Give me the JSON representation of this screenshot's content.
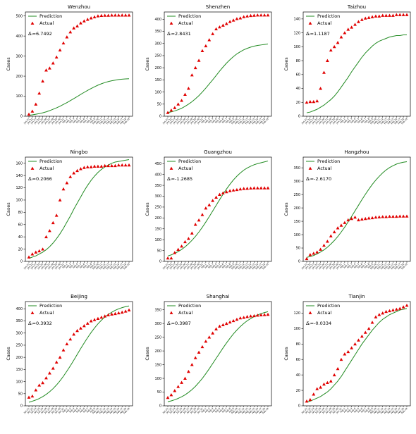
{
  "figure": {
    "legend": {
      "prediction": "Prediction",
      "actual": "Actual"
    },
    "ylabel": "Cases",
    "x_ticks": [
      "Jan.21",
      "Jan.22",
      "Jan.23",
      "Jan.24",
      "Jan.25",
      "Jan.26",
      "Jan.27",
      "Jan.28",
      "Jan.29",
      "Jan.30",
      "Jan.31",
      "Feb.1",
      "Feb.2",
      "Feb.3",
      "Feb.4",
      "Feb.5",
      "Feb.6",
      "Feb.7",
      "Feb.8",
      "Feb.9",
      "Feb.10",
      "Feb.11",
      "Feb.12",
      "Feb.13",
      "Feb.14",
      "Feb.15",
      "Feb.16",
      "Feb.17",
      "Feb.18",
      "Feb.19"
    ],
    "colors": {
      "prediction": "#228b22",
      "actual": "#e00000"
    }
  },
  "chart_data": [
    {
      "type": "line",
      "title": "Wenzhou",
      "annotation": "Δ̄ᵢ=6.7492",
      "ylabel": "Cases",
      "ylim": [
        0,
        520
      ],
      "yticks": [
        0,
        100,
        200,
        300,
        400,
        500
      ],
      "series": [
        {
          "name": "Prediction",
          "values": [
            5,
            7,
            10,
            13,
            17,
            22,
            28,
            35,
            42,
            50,
            59,
            68,
            78,
            88,
            98,
            109,
            119,
            129,
            138,
            147,
            155,
            162,
            168,
            173,
            177,
            180,
            183,
            185,
            186,
            187
          ]
        },
        {
          "name": "Actual",
          "values": [
            10,
            25,
            60,
            115,
            175,
            230,
            240,
            265,
            295,
            330,
            365,
            395,
            420,
            440,
            450,
            465,
            475,
            483,
            490,
            495,
            500,
            502,
            503,
            503,
            504,
            504,
            504,
            504,
            504,
            504
          ]
        }
      ]
    },
    {
      "type": "line",
      "title": "Shenzhen",
      "annotation": "Δ̄ᵢ=2.8431",
      "ylabel": "Cases",
      "ylim": [
        0,
        430
      ],
      "yticks": [
        0,
        50,
        100,
        150,
        200,
        250,
        300,
        350,
        400
      ],
      "series": [
        {
          "name": "Prediction",
          "values": [
            15,
            18,
            22,
            27,
            33,
            41,
            50,
            60,
            72,
            85,
            100,
            116,
            133,
            150,
            168,
            186,
            203,
            219,
            233,
            246,
            257,
            266,
            274,
            280,
            285,
            289,
            292,
            294,
            296,
            298
          ]
        },
        {
          "name": "Actual",
          "values": [
            15,
            25,
            35,
            50,
            65,
            90,
            115,
            170,
            200,
            230,
            270,
            290,
            315,
            340,
            360,
            368,
            375,
            382,
            390,
            396,
            402,
            405,
            410,
            413,
            415,
            416,
            417,
            417,
            417,
            417
          ]
        }
      ]
    },
    {
      "type": "line",
      "title": "Taizhou",
      "annotation": "Δ̄ᵢ=1.1187",
      "ylabel": "Cases",
      "ylim": [
        0,
        150
      ],
      "yticks": [
        0,
        20,
        40,
        60,
        80,
        100,
        120,
        140
      ],
      "series": [
        {
          "name": "Prediction",
          "values": [
            5,
            6,
            8,
            10,
            13,
            16,
            20,
            24,
            29,
            35,
            42,
            49,
            56,
            64,
            71,
            78,
            85,
            91,
            96,
            101,
            105,
            108,
            110,
            112,
            114,
            115,
            116,
            116,
            117,
            117
          ]
        },
        {
          "name": "Actual",
          "values": [
            20,
            21,
            21,
            22,
            40,
            63,
            80,
            95,
            100,
            106,
            114,
            120,
            125,
            128,
            132,
            136,
            139,
            141,
            142,
            143,
            144,
            144,
            145,
            145,
            145,
            145,
            146,
            146,
            146,
            146
          ]
        }
      ]
    },
    {
      "type": "line",
      "title": "Ningbo",
      "annotation": "Δ̄ᵢ=0.2066",
      "ylabel": "Cases",
      "ylim": [
        0,
        170
      ],
      "yticks": [
        0,
        20,
        40,
        60,
        80,
        100,
        120,
        140,
        160
      ],
      "series": [
        {
          "name": "Prediction",
          "values": [
            5,
            7,
            9,
            12,
            15,
            19,
            24,
            30,
            37,
            45,
            54,
            64,
            74,
            85,
            95,
            105,
            115,
            124,
            132,
            139,
            145,
            150,
            154,
            157,
            160,
            162,
            163,
            164,
            165,
            166
          ]
        },
        {
          "name": "Actual",
          "values": [
            7,
            12,
            15,
            17,
            20,
            40,
            50,
            63,
            75,
            100,
            118,
            128,
            138,
            144,
            148,
            151,
            153,
            154,
            154,
            155,
            155,
            155,
            156,
            156,
            156,
            156,
            157,
            157,
            157,
            157
          ]
        }
      ]
    },
    {
      "type": "line",
      "title": "Guangzhou",
      "annotation": "Δ̄ᵢ=-1.2685",
      "ylabel": "Cases",
      "ylim": [
        0,
        480
      ],
      "yticks": [
        0,
        50,
        100,
        150,
        200,
        250,
        300,
        350,
        400,
        450
      ],
      "series": [
        {
          "name": "Prediction",
          "values": [
            25,
            30,
            37,
            45,
            55,
            67,
            81,
            97,
            115,
            135,
            157,
            181,
            206,
            232,
            258,
            284,
            309,
            333,
            355,
            375,
            392,
            407,
            420,
            430,
            438,
            445,
            450,
            454,
            458,
            462
          ]
        },
        {
          "name": "Actual",
          "values": [
            15,
            15,
            40,
            55,
            70,
            90,
            105,
            130,
            170,
            190,
            215,
            245,
            260,
            280,
            295,
            308,
            315,
            320,
            325,
            328,
            330,
            333,
            335,
            336,
            337,
            338,
            338,
            338,
            338,
            338
          ]
        }
      ]
    },
    {
      "type": "line",
      "title": "Hangzhou",
      "annotation": "Δ̄ᵢ=-2.6170",
      "ylabel": "Cases",
      "ylim": [
        0,
        390
      ],
      "yticks": [
        0,
        50,
        100,
        150,
        200,
        250,
        300,
        350
      ],
      "series": [
        {
          "name": "Prediction",
          "values": [
            15,
            18,
            22,
            28,
            35,
            43,
            53,
            65,
            78,
            93,
            110,
            128,
            148,
            168,
            189,
            210,
            231,
            251,
            270,
            288,
            304,
            318,
            331,
            342,
            351,
            358,
            364,
            368,
            371,
            373
          ]
        },
        {
          "name": "Actual",
          "values": [
            10,
            25,
            30,
            35,
            45,
            60,
            75,
            95,
            110,
            125,
            135,
            145,
            155,
            160,
            165,
            155,
            158,
            160,
            162,
            163,
            165,
            166,
            167,
            167,
            168,
            168,
            168,
            169,
            169,
            169
          ]
        }
      ]
    },
    {
      "type": "line",
      "title": "Beijing",
      "annotation": "Δ̄ᵢ=0.3932",
      "ylabel": "Cases",
      "ylim": [
        0,
        430
      ],
      "yticks": [
        0,
        50,
        100,
        150,
        200,
        250,
        300,
        350,
        400
      ],
      "series": [
        {
          "name": "Prediction",
          "values": [
            15,
            19,
            24,
            30,
            38,
            47,
            58,
            71,
            86,
            103,
            122,
            143,
            165,
            188,
            212,
            236,
            259,
            281,
            302,
            321,
            338,
            353,
            366,
            377,
            386,
            394,
            400,
            405,
            409,
            412
          ]
        },
        {
          "name": "Actual",
          "values": [
            35,
            40,
            65,
            85,
            95,
            115,
            135,
            155,
            180,
            200,
            230,
            255,
            275,
            295,
            310,
            320,
            330,
            340,
            350,
            355,
            360,
            365,
            370,
            375,
            378,
            380,
            383,
            386,
            390,
            395
          ]
        }
      ]
    },
    {
      "type": "line",
      "title": "Shanghai",
      "annotation": "Δ̄ᵢ=0.3987",
      "ylabel": "Cases",
      "ylim": [
        0,
        380
      ],
      "yticks": [
        0,
        50,
        100,
        150,
        200,
        250,
        300,
        350
      ],
      "series": [
        {
          "name": "Prediction",
          "values": [
            15,
            18,
            22,
            27,
            33,
            40,
            49,
            59,
            71,
            85,
            100,
            117,
            135,
            154,
            173,
            192,
            211,
            229,
            246,
            262,
            276,
            289,
            300,
            310,
            318,
            325,
            331,
            336,
            340,
            343
          ]
        },
        {
          "name": "Actual",
          "values": [
            30,
            40,
            55,
            70,
            85,
            100,
            125,
            150,
            175,
            195,
            215,
            235,
            250,
            265,
            280,
            290,
            295,
            300,
            305,
            310,
            315,
            320,
            322,
            325,
            327,
            328,
            330,
            331,
            332,
            333
          ]
        }
      ]
    },
    {
      "type": "line",
      "title": "Tianjin",
      "annotation": "Δ̄ᵢ=-0.0334",
      "ylabel": "Cases",
      "ylim": [
        0,
        135
      ],
      "yticks": [
        0,
        20,
        40,
        60,
        80,
        100,
        120
      ],
      "series": [
        {
          "name": "Prediction",
          "values": [
            5,
            6,
            8,
            10,
            12,
            15,
            18,
            22,
            27,
            32,
            38,
            45,
            52,
            59,
            66,
            73,
            80,
            86,
            92,
            98,
            103,
            108,
            112,
            115,
            118,
            120,
            122,
            124,
            125,
            126
          ]
        },
        {
          "name": "Actual",
          "values": [
            6,
            8,
            15,
            22,
            24,
            28,
            30,
            32,
            40,
            48,
            60,
            67,
            70,
            75,
            80,
            85,
            90,
            95,
            100,
            108,
            115,
            118,
            120,
            122,
            123,
            124,
            125,
            126,
            128,
            130
          ]
        }
      ]
    }
  ]
}
